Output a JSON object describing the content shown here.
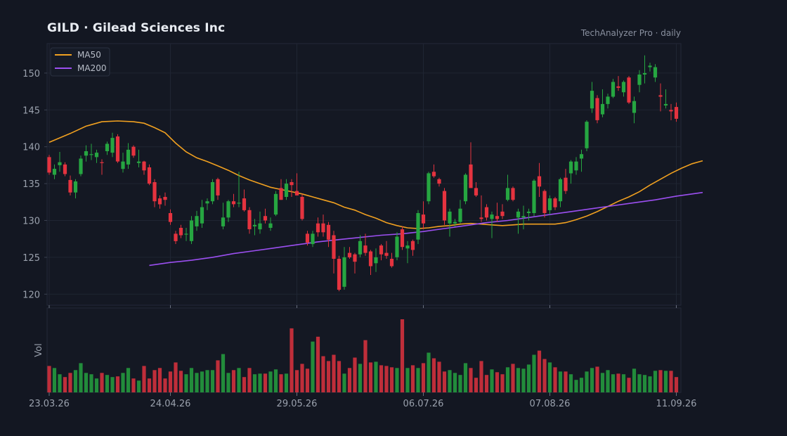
{
  "header": {
    "title": "GILD  ·  Gilead Sciences Inc",
    "source": "TechAnalyzer Pro · daily"
  },
  "colors": {
    "background": "#131722",
    "up": "#26a641",
    "down": "#e5333f",
    "ma50": "#f0a020",
    "ma200": "#9b4ff0",
    "grid": "#1f2533",
    "axis": "#3a4050"
  },
  "chart_data": {
    "type": "candlestick",
    "price_axis": {
      "ylim": [
        118.5,
        154
      ],
      "ticks": [
        120,
        125,
        130,
        135,
        140,
        145,
        150
      ]
    },
    "volume_axis": {
      "label": "Vol"
    },
    "x_ticks": [
      {
        "index": 0,
        "label": "23.03.26"
      },
      {
        "index": 23,
        "label": "24.04.26"
      },
      {
        "index": 47,
        "label": "29.05.26"
      },
      {
        "index": 71,
        "label": "06.07.26"
      },
      {
        "index": 95,
        "label": "07.08.26"
      },
      {
        "index": 119,
        "label": "11.09.26"
      }
    ],
    "legend": {
      "placement": "top-left",
      "items": [
        {
          "name": "MA50",
          "color": "#f0a020"
        },
        {
          "name": "MA200",
          "color": "#9b4ff0"
        }
      ]
    },
    "ohlc": [
      [
        138.6,
        138.9,
        136.2,
        136.5
      ],
      [
        136.2,
        137.6,
        135.6,
        137.0
      ],
      [
        137.5,
        139.3,
        136.6,
        137.9
      ],
      [
        137.6,
        137.9,
        136.0,
        136.3
      ],
      [
        135.5,
        136.1,
        133.4,
        133.8
      ],
      [
        133.8,
        135.6,
        133.0,
        135.3
      ],
      [
        136.3,
        138.8,
        136.0,
        138.4
      ],
      [
        138.8,
        140.2,
        138.0,
        139.4
      ],
      [
        138.9,
        140.4,
        138.2,
        139.0
      ],
      [
        138.6,
        139.6,
        137.8,
        139.2
      ],
      [
        137.9,
        138.3,
        136.2,
        137.8
      ],
      [
        139.4,
        140.7,
        138.9,
        140.4
      ],
      [
        139.2,
        141.9,
        138.6,
        141.2
      ],
      [
        141.4,
        141.7,
        137.8,
        138.0
      ],
      [
        137.0,
        139.2,
        136.5,
        138.0
      ],
      [
        137.6,
        140.5,
        137.0,
        139.6
      ],
      [
        140.0,
        140.2,
        138.5,
        138.8
      ],
      [
        137.8,
        139.6,
        137.2,
        138.0
      ],
      [
        138.0,
        138.1,
        136.2,
        136.8
      ],
      [
        137.2,
        137.6,
        134.8,
        135.0
      ],
      [
        135.2,
        135.6,
        131.8,
        132.6
      ],
      [
        133.0,
        133.4,
        131.6,
        132.2
      ],
      [
        133.2,
        133.8,
        132.0,
        132.8
      ],
      [
        131.0,
        131.5,
        129.4,
        129.8
      ],
      [
        128.2,
        128.6,
        126.8,
        127.2
      ],
      [
        129.0,
        129.4,
        127.6,
        128.0
      ],
      [
        128.2,
        129.0,
        127.2,
        128.2
      ],
      [
        127.2,
        130.6,
        126.8,
        130.0
      ],
      [
        129.2,
        131.3,
        128.6,
        130.6
      ],
      [
        129.6,
        132.8,
        129.0,
        131.8
      ],
      [
        132.3,
        133.0,
        131.4,
        132.6
      ],
      [
        132.6,
        135.6,
        132.2,
        135.2
      ],
      [
        135.6,
        135.8,
        132.8,
        133.4
      ],
      [
        129.2,
        132.4,
        128.8,
        130.4
      ],
      [
        130.4,
        132.8,
        129.8,
        132.6
      ],
      [
        132.6,
        133.6,
        131.8,
        132.2
      ],
      [
        132.4,
        136.6,
        131.8,
        132.4
      ],
      [
        133.0,
        134.2,
        131.2,
        131.4
      ],
      [
        131.4,
        131.8,
        128.2,
        128.8
      ],
      [
        129.2,
        130.2,
        128.0,
        129.4
      ],
      [
        128.8,
        131.2,
        128.2,
        129.6
      ],
      [
        130.6,
        131.6,
        129.6,
        130.0
      ],
      [
        129.0,
        130.4,
        128.6,
        129.6
      ],
      [
        130.8,
        134.0,
        130.6,
        133.6
      ],
      [
        134.4,
        135.6,
        132.8,
        132.8
      ],
      [
        133.2,
        135.6,
        132.8,
        135.0
      ],
      [
        135.2,
        135.6,
        133.2,
        134.8
      ],
      [
        134.0,
        136.4,
        133.6,
        133.4
      ],
      [
        133.2,
        133.6,
        130.0,
        130.2
      ],
      [
        128.2,
        128.6,
        126.6,
        127.0
      ],
      [
        126.8,
        128.6,
        126.4,
        128.2
      ],
      [
        129.6,
        130.4,
        127.8,
        128.4
      ],
      [
        129.6,
        130.8,
        127.8,
        128.4
      ],
      [
        129.4,
        129.8,
        126.4,
        127.4
      ],
      [
        128.0,
        128.6,
        122.8,
        124.8
      ],
      [
        124.8,
        125.2,
        120.4,
        120.6
      ],
      [
        121.0,
        126.4,
        120.6,
        125.0
      ],
      [
        125.6,
        126.4,
        124.8,
        125.0
      ],
      [
        125.4,
        125.6,
        122.8,
        124.4
      ],
      [
        125.4,
        128.0,
        125.0,
        127.2
      ],
      [
        126.6,
        128.2,
        125.2,
        125.6
      ],
      [
        125.8,
        126.0,
        122.6,
        123.8
      ],
      [
        124.2,
        126.2,
        123.0,
        125.0
      ],
      [
        126.6,
        126.8,
        124.6,
        125.4
      ],
      [
        125.6,
        127.2,
        124.8,
        125.2
      ],
      [
        124.8,
        125.6,
        123.6,
        123.8
      ],
      [
        125.0,
        128.4,
        124.6,
        127.8
      ],
      [
        128.8,
        129.2,
        126.0,
        126.4
      ],
      [
        126.2,
        127.2,
        124.2,
        126.6
      ],
      [
        127.2,
        127.4,
        125.2,
        126.0
      ],
      [
        127.4,
        131.4,
        126.8,
        131.0
      ],
      [
        130.8,
        132.6,
        128.8,
        129.6
      ],
      [
        132.6,
        136.6,
        132.2,
        136.4
      ],
      [
        136.6,
        137.6,
        135.8,
        136.0
      ],
      [
        135.6,
        135.8,
        134.6,
        135.0
      ],
      [
        134.0,
        134.4,
        129.4,
        130.0
      ],
      [
        129.6,
        131.6,
        127.8,
        131.2
      ],
      [
        129.6,
        130.2,
        129.2,
        129.8
      ],
      [
        129.8,
        132.8,
        129.6,
        131.6
      ],
      [
        132.6,
        136.4,
        132.2,
        136.2
      ],
      [
        137.6,
        140.6,
        134.6,
        134.4
      ],
      [
        134.4,
        135.2,
        133.2,
        133.4
      ],
      [
        130.4,
        133.4,
        129.8,
        130.2
      ],
      [
        131.8,
        132.2,
        130.0,
        130.4
      ],
      [
        130.2,
        131.2,
        127.6,
        130.8
      ],
      [
        130.6,
        132.4,
        129.8,
        130.2
      ],
      [
        131.2,
        132.2,
        130.2,
        130.6
      ],
      [
        132.8,
        136.2,
        132.6,
        134.4
      ],
      [
        134.4,
        134.6,
        132.6,
        132.8
      ],
      [
        130.4,
        131.6,
        128.2,
        131.2
      ],
      [
        130.4,
        132.0,
        128.8,
        130.6
      ],
      [
        131.0,
        131.6,
        130.0,
        131.2
      ],
      [
        131.0,
        135.6,
        130.6,
        135.4
      ],
      [
        136.0,
        137.8,
        133.2,
        134.6
      ],
      [
        134.0,
        134.2,
        130.4,
        131.0
      ],
      [
        131.4,
        133.4,
        130.8,
        133.0
      ],
      [
        133.0,
        133.2,
        131.4,
        131.8
      ],
      [
        132.6,
        135.8,
        131.8,
        135.6
      ],
      [
        135.8,
        137.0,
        133.6,
        134.0
      ],
      [
        136.4,
        138.2,
        135.0,
        138.0
      ],
      [
        136.8,
        138.6,
        136.2,
        138.0
      ],
      [
        138.4,
        139.6,
        136.6,
        139.0
      ],
      [
        139.8,
        143.6,
        139.4,
        143.4
      ],
      [
        145.2,
        148.8,
        144.6,
        147.6
      ],
      [
        146.6,
        147.0,
        143.2,
        143.6
      ],
      [
        144.4,
        147.8,
        144.0,
        145.8
      ],
      [
        145.8,
        147.2,
        145.2,
        146.8
      ],
      [
        146.8,
        149.2,
        146.6,
        148.8
      ],
      [
        148.2,
        149.6,
        147.6,
        148.0
      ],
      [
        147.4,
        149.0,
        146.8,
        148.8
      ],
      [
        149.4,
        149.6,
        145.8,
        146.0
      ],
      [
        144.6,
        146.8,
        143.2,
        146.2
      ],
      [
        148.4,
        150.4,
        147.4,
        149.8
      ],
      [
        149.8,
        152.4,
        148.6,
        150.0
      ],
      [
        150.8,
        151.4,
        150.2,
        151.0
      ],
      [
        149.4,
        151.2,
        148.8,
        150.8
      ],
      [
        147.0,
        148.6,
        144.8,
        146.8
      ],
      [
        145.6,
        147.8,
        145.2,
        145.8
      ],
      [
        145.0,
        145.8,
        143.6,
        144.8
      ],
      [
        145.4,
        146.0,
        143.4,
        143.8
      ]
    ],
    "volume": [
      38,
      35,
      26,
      22,
      28,
      32,
      42,
      28,
      26,
      20,
      28,
      25,
      22,
      23,
      28,
      35,
      20,
      17,
      38,
      20,
      32,
      35,
      20,
      30,
      43,
      31,
      26,
      35,
      28,
      30,
      32,
      32,
      46,
      55,
      28,
      32,
      35,
      22,
      35,
      26,
      27,
      27,
      30,
      33,
      26,
      27,
      92,
      32,
      41,
      34,
      73,
      80,
      52,
      45,
      54,
      45,
      27,
      35,
      50,
      41,
      75,
      43,
      44,
      39,
      38,
      36,
      35,
      105,
      35,
      39,
      35,
      42,
      57,
      49,
      44,
      30,
      32,
      28,
      25,
      42,
      35,
      21,
      45,
      25,
      33,
      29,
      26,
      36,
      41,
      35,
      34,
      40,
      54,
      60,
      48,
      43,
      36,
      30,
      30,
      26,
      18,
      21,
      30,
      35,
      37,
      28,
      32,
      26,
      27,
      26,
      21,
      34,
      26,
      25,
      23,
      31,
      32,
      31,
      31,
      22
    ],
    "ma50": [
      [
        0,
        140.6
      ],
      [
        4,
        141.8
      ],
      [
        7,
        142.8
      ],
      [
        10,
        143.4
      ],
      [
        13,
        143.5
      ],
      [
        16,
        143.4
      ],
      [
        18,
        143.2
      ],
      [
        20,
        142.6
      ],
      [
        22,
        141.9
      ],
      [
        24,
        140.5
      ],
      [
        26,
        139.3
      ],
      [
        28,
        138.5
      ],
      [
        30,
        138.0
      ],
      [
        32,
        137.4
      ],
      [
        34,
        136.8
      ],
      [
        36,
        136.1
      ],
      [
        38,
        135.5
      ],
      [
        40,
        135.0
      ],
      [
        42,
        134.5
      ],
      [
        44,
        134.2
      ],
      [
        46,
        133.9
      ],
      [
        48,
        133.6
      ],
      [
        50,
        133.2
      ],
      [
        52,
        132.8
      ],
      [
        54,
        132.4
      ],
      [
        56,
        131.8
      ],
      [
        58,
        131.4
      ],
      [
        60,
        130.8
      ],
      [
        62,
        130.3
      ],
      [
        64,
        129.7
      ],
      [
        66,
        129.3
      ],
      [
        68,
        129.0
      ],
      [
        70,
        128.9
      ],
      [
        72,
        129.0
      ],
      [
        74,
        129.2
      ],
      [
        76,
        129.3
      ],
      [
        78,
        129.5
      ],
      [
        80,
        129.6
      ],
      [
        82,
        129.5
      ],
      [
        84,
        129.4
      ],
      [
        86,
        129.3
      ],
      [
        88,
        129.4
      ],
      [
        90,
        129.5
      ],
      [
        92,
        129.5
      ],
      [
        94,
        129.5
      ],
      [
        96,
        129.5
      ],
      [
        98,
        129.7
      ],
      [
        100,
        130.1
      ],
      [
        102,
        130.6
      ],
      [
        104,
        131.2
      ],
      [
        106,
        131.9
      ],
      [
        108,
        132.6
      ],
      [
        110,
        133.2
      ],
      [
        112,
        133.9
      ],
      [
        114,
        134.8
      ],
      [
        116,
        135.6
      ],
      [
        118,
        136.4
      ],
      [
        120,
        137.1
      ],
      [
        122,
        137.7
      ],
      [
        124,
        138.1
      ]
    ],
    "ma200": [
      [
        19,
        123.9
      ],
      [
        23,
        124.3
      ],
      [
        27,
        124.6
      ],
      [
        31,
        125.0
      ],
      [
        35,
        125.5
      ],
      [
        39,
        125.9
      ],
      [
        43,
        126.3
      ],
      [
        47,
        126.7
      ],
      [
        51,
        127.1
      ],
      [
        55,
        127.4
      ],
      [
        59,
        127.7
      ],
      [
        63,
        128.0
      ],
      [
        67,
        128.2
      ],
      [
        71,
        128.5
      ],
      [
        75,
        128.9
      ],
      [
        79,
        129.3
      ],
      [
        83,
        129.7
      ],
      [
        87,
        130.0
      ],
      [
        91,
        130.4
      ],
      [
        95,
        130.8
      ],
      [
        99,
        131.2
      ],
      [
        103,
        131.6
      ],
      [
        107,
        132.0
      ],
      [
        111,
        132.4
      ],
      [
        115,
        132.8
      ],
      [
        119,
        133.3
      ],
      [
        124,
        133.8
      ]
    ]
  }
}
